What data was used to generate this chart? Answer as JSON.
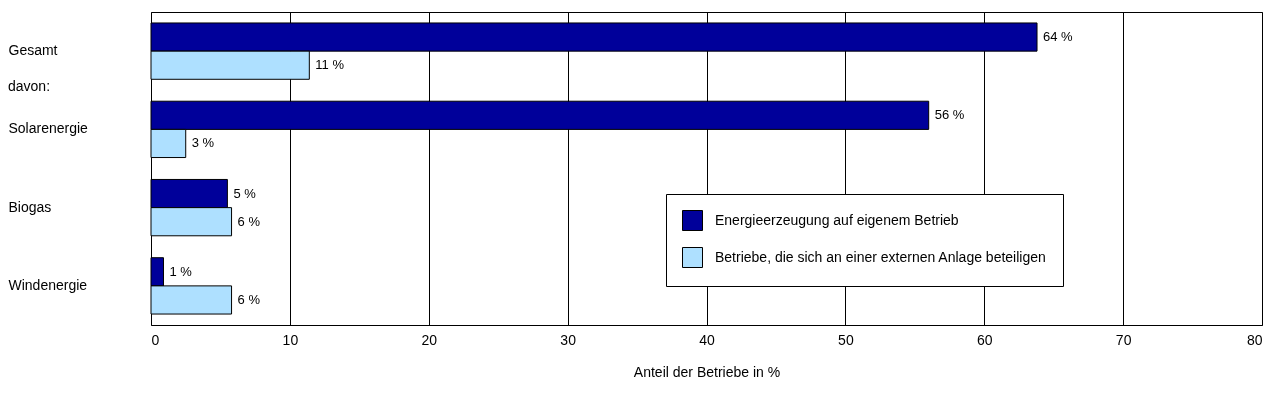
{
  "chart_data": {
    "type": "bar",
    "orientation": "horizontal",
    "categories": [
      "Gesamt",
      "Solarenergie",
      "Biogas",
      "Windenergie"
    ],
    "series": [
      {
        "name": "Energieerzeugung auf eigenem Betrieb",
        "color": "#00009a",
        "values": [
          63.8,
          56,
          5.5,
          0.9
        ],
        "value_labels": [
          "64 %",
          "56 %",
          "5 %",
          "1 %"
        ]
      },
      {
        "name": "Betriebe, die sich an einer externen Anlage beteiligen",
        "color": "#aee0ff",
        "values": [
          11.4,
          2.5,
          5.8,
          5.8
        ],
        "value_labels": [
          "11 %",
          "3 %",
          "6 %",
          "6 %"
        ]
      }
    ],
    "xlim": [
      0,
      80
    ],
    "xticks": [
      0,
      10,
      20,
      30,
      40,
      50,
      60,
      70,
      80
    ],
    "xlabel": "Anteil der Betriebe in %",
    "grid": "x",
    "legend": "bottom right",
    "annotations": [
      "davon:"
    ]
  }
}
